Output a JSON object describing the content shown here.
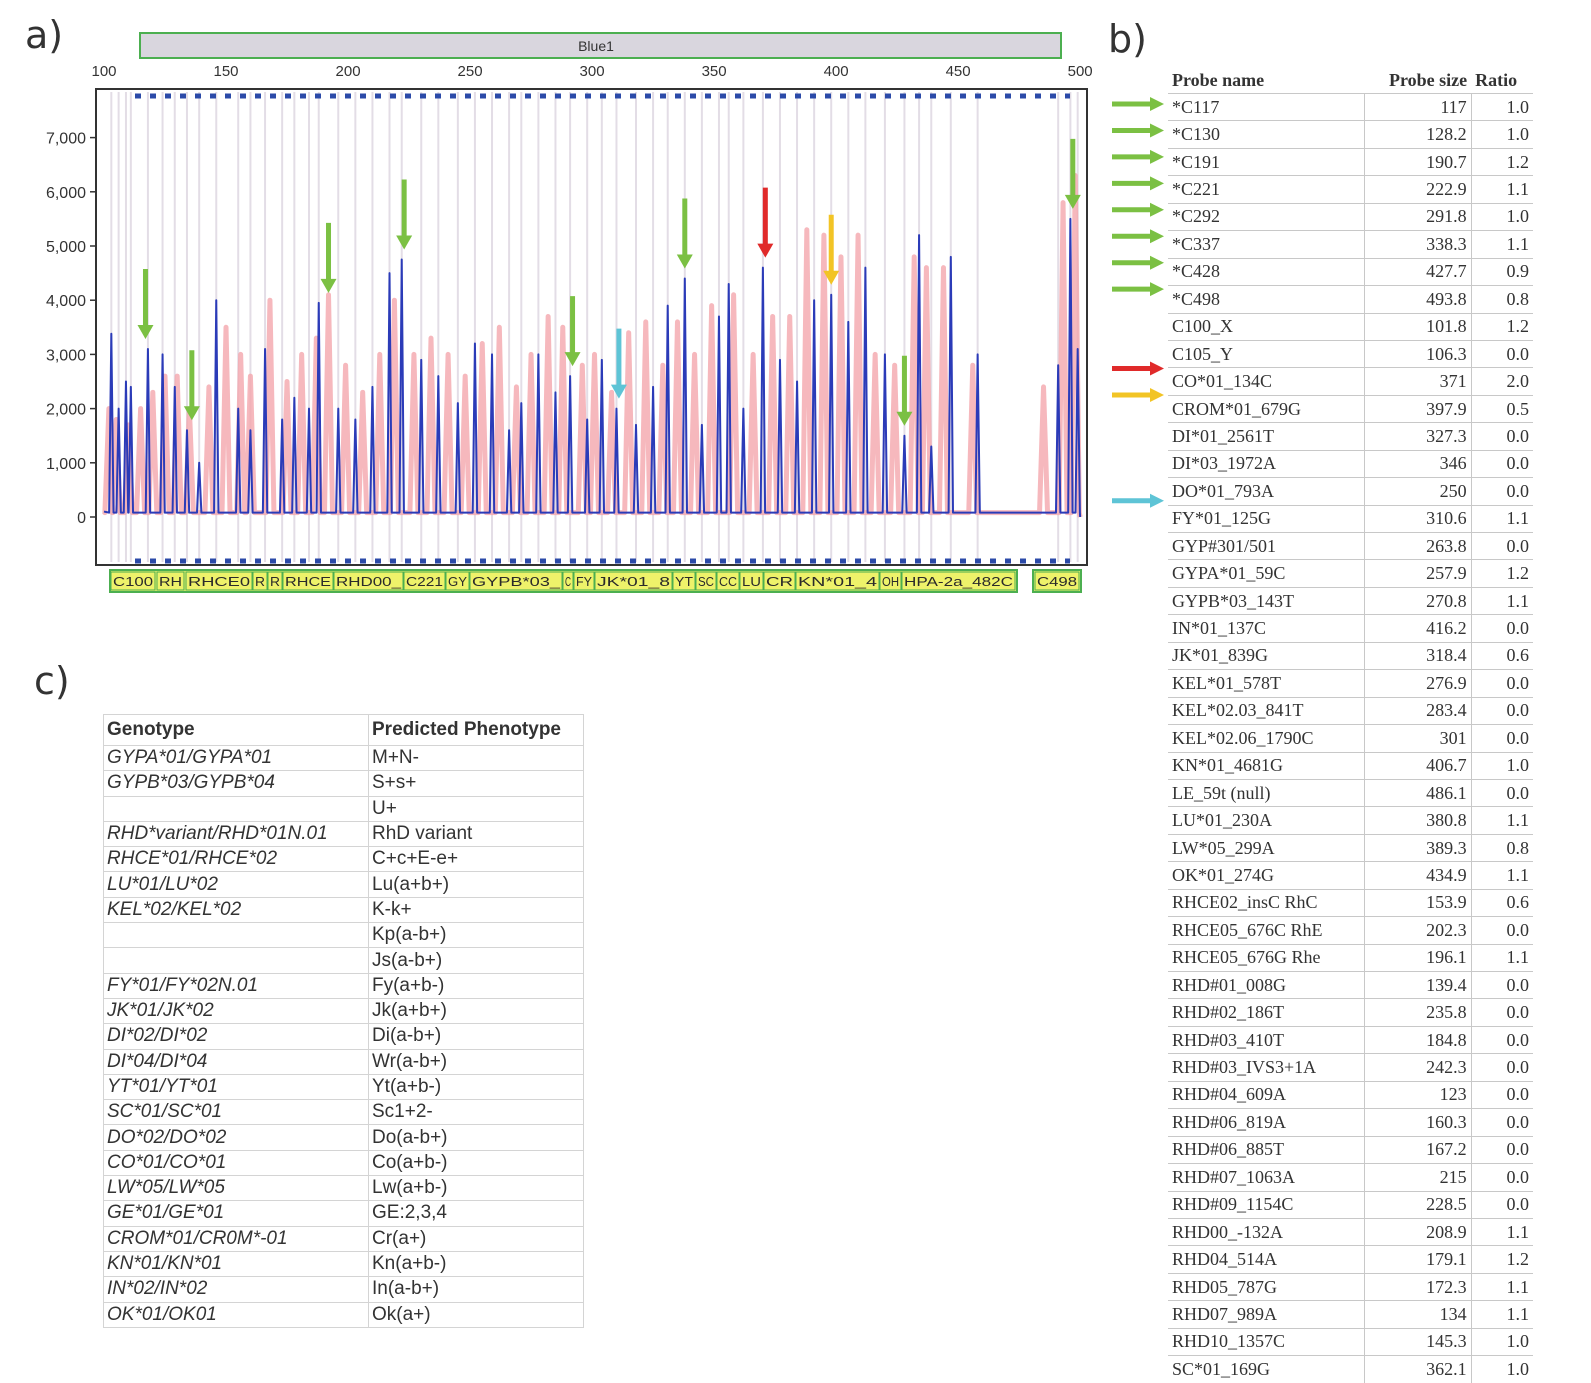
{
  "panels": {
    "a": "a)",
    "b": "b)",
    "c": "c)"
  },
  "chart_data": {
    "type": "line",
    "dye_label": "Blue1",
    "x_ticks": [
      100,
      150,
      200,
      250,
      300,
      350,
      400,
      450,
      500
    ],
    "xlim": [
      100,
      500
    ],
    "y_ticks": [
      "0",
      "1,000",
      "2,000",
      "3,000",
      "4,000",
      "5,000",
      "6,000",
      "7,000"
    ],
    "ylim": [
      0,
      8000
    ],
    "series": [
      {
        "color": "#2b3bb8",
        "peaks": [
          [
            103,
            3380
          ],
          [
            106,
            2000
          ],
          [
            109,
            2500
          ],
          [
            111,
            2400
          ],
          [
            118,
            3100
          ],
          [
            124,
            3000
          ],
          [
            129,
            2400
          ],
          [
            134,
            1600
          ],
          [
            139,
            1000
          ],
          [
            146,
            4000
          ],
          [
            155,
            2000
          ],
          [
            160,
            1600
          ],
          [
            166,
            3100
          ],
          [
            173,
            1800
          ],
          [
            178,
            2200
          ],
          [
            184,
            2000
          ],
          [
            188,
            3950
          ],
          [
            196,
            2000
          ],
          [
            203,
            1800
          ],
          [
            210,
            2400
          ],
          [
            217,
            4500
          ],
          [
            222,
            4750
          ],
          [
            230,
            2900
          ],
          [
            237,
            2600
          ],
          [
            245,
            2100
          ],
          [
            252,
            3200
          ],
          [
            259,
            3000
          ],
          [
            266,
            1600
          ],
          [
            271,
            2100
          ],
          [
            278,
            3000
          ],
          [
            285,
            2300
          ],
          [
            291,
            2600
          ],
          [
            298,
            1800
          ],
          [
            304,
            2900
          ],
          [
            310,
            2000
          ],
          [
            318,
            1700
          ],
          [
            325,
            2400
          ],
          [
            331,
            3900
          ],
          [
            338,
            4400
          ],
          [
            345,
            1700
          ],
          [
            352,
            3700
          ],
          [
            356,
            4300
          ],
          [
            362,
            2000
          ],
          [
            370,
            4600
          ],
          [
            377,
            2900
          ],
          [
            384,
            2500
          ],
          [
            391,
            4000
          ],
          [
            398,
            4100
          ],
          [
            405,
            3600
          ],
          [
            412,
            4600
          ],
          [
            420,
            3000
          ],
          [
            428,
            1500
          ],
          [
            434,
            5200
          ],
          [
            439,
            1300
          ],
          [
            447,
            4800
          ],
          [
            458,
            3000
          ],
          [
            491,
            2800
          ],
          [
            496,
            5500
          ],
          [
            499,
            3100
          ]
        ]
      },
      {
        "color": "#f4a6ad",
        "peaks": [
          [
            102,
            2000
          ],
          [
            105,
            1800
          ],
          [
            110,
            1700
          ],
          [
            115,
            2000
          ],
          [
            120,
            2300
          ],
          [
            125,
            2600
          ],
          [
            130,
            2600
          ],
          [
            135,
            2000
          ],
          [
            143,
            2400
          ],
          [
            150,
            3500
          ],
          [
            156,
            3000
          ],
          [
            160,
            2600
          ],
          [
            168,
            4000
          ],
          [
            175,
            2500
          ],
          [
            181,
            3000
          ],
          [
            187,
            3300
          ],
          [
            192,
            4100
          ],
          [
            199,
            2800
          ],
          [
            206,
            2300
          ],
          [
            213,
            3000
          ],
          [
            219,
            4000
          ],
          [
            227,
            3000
          ],
          [
            234,
            3300
          ],
          [
            241,
            3000
          ],
          [
            248,
            2600
          ],
          [
            255,
            3200
          ],
          [
            262,
            3500
          ],
          [
            269,
            2400
          ],
          [
            275,
            3000
          ],
          [
            282,
            3700
          ],
          [
            288,
            3500
          ],
          [
            296,
            2800
          ],
          [
            301,
            3000
          ],
          [
            308,
            2300
          ],
          [
            315,
            3400
          ],
          [
            322,
            3600
          ],
          [
            329,
            2800
          ],
          [
            335,
            3600
          ],
          [
            342,
            3000
          ],
          [
            349,
            3900
          ],
          [
            358,
            4100
          ],
          [
            366,
            3000
          ],
          [
            374,
            3700
          ],
          [
            381,
            3700
          ],
          [
            388,
            5300
          ],
          [
            395,
            5200
          ],
          [
            402,
            4800
          ],
          [
            409,
            5200
          ],
          [
            416,
            3000
          ],
          [
            424,
            2800
          ],
          [
            432,
            4800
          ],
          [
            437,
            4600
          ],
          [
            444,
            4600
          ],
          [
            456,
            2800
          ],
          [
            485,
            2400
          ],
          [
            493,
            5800
          ],
          [
            498,
            6300
          ]
        ]
      }
    ],
    "arrows": [
      {
        "x": 117,
        "color": "#7bc043"
      },
      {
        "x": 136,
        "color": "#7bc043"
      },
      {
        "x": 192,
        "color": "#7bc043"
      },
      {
        "x": 223,
        "color": "#7bc043"
      },
      {
        "x": 292,
        "color": "#7bc043"
      },
      {
        "x": 338,
        "color": "#7bc043"
      },
      {
        "x": 428,
        "color": "#7bc043"
      },
      {
        "x": 497,
        "color": "#7bc043"
      },
      {
        "x": 371,
        "color": "#e02a2a"
      },
      {
        "x": 398,
        "color": "#f2c425"
      },
      {
        "x": 311,
        "color": "#5ec4d6"
      }
    ],
    "bin_labels": [
      "C100",
      "RH",
      "RHCE0",
      "R",
      "R",
      "RHCE",
      "RHD00_",
      "C221",
      "GY",
      "GYPB*03_",
      "C",
      "FY",
      "JK*01_8",
      "YT",
      "SC",
      "CC",
      "LU",
      "CR",
      "KN*01_4",
      "OH",
      "HPA-2a_482C",
      "C498"
    ]
  },
  "probe_table": {
    "headers": [
      "Probe name",
      "Probe size",
      "Ratio"
    ],
    "rows": [
      {
        "name": "*C117",
        "size": "117",
        "ratio": "1.0",
        "arrow": "#7bc043"
      },
      {
        "name": "*C130",
        "size": "128.2",
        "ratio": "1.0",
        "arrow": "#7bc043"
      },
      {
        "name": "*C191",
        "size": "190.7",
        "ratio": "1.2",
        "arrow": "#7bc043"
      },
      {
        "name": "*C221",
        "size": "222.9",
        "ratio": "1.1",
        "arrow": "#7bc043"
      },
      {
        "name": "*C292",
        "size": "291.8",
        "ratio": "1.0",
        "arrow": "#7bc043"
      },
      {
        "name": "*C337",
        "size": "338.3",
        "ratio": "1.1",
        "arrow": "#7bc043"
      },
      {
        "name": "*C428",
        "size": "427.7",
        "ratio": "0.9",
        "arrow": "#7bc043"
      },
      {
        "name": "*C498",
        "size": "493.8",
        "ratio": "0.8",
        "arrow": "#7bc043"
      },
      {
        "name": "C100_X",
        "size": "101.8",
        "ratio": "1.2",
        "arrow": ""
      },
      {
        "name": "C105_Y",
        "size": "106.3",
        "ratio": "0.0",
        "arrow": ""
      },
      {
        "name": "CO*01_134C",
        "size": "371",
        "ratio": "2.0",
        "arrow": "#e02a2a"
      },
      {
        "name": "CROM*01_679G",
        "size": "397.9",
        "ratio": "0.5",
        "arrow": "#f2c425"
      },
      {
        "name": "DI*01_2561T",
        "size": "327.3",
        "ratio": "0.0",
        "arrow": ""
      },
      {
        "name": "DI*03_1972A",
        "size": "346",
        "ratio": "0.0",
        "arrow": ""
      },
      {
        "name": "DO*01_793A",
        "size": "250",
        "ratio": "0.0",
        "arrow": ""
      },
      {
        "name": "FY*01_125G",
        "size": "310.6",
        "ratio": "1.1",
        "arrow": "#5ec4d6"
      },
      {
        "name": "GYP#301/501",
        "size": "263.8",
        "ratio": "0.0",
        "arrow": ""
      },
      {
        "name": "GYPA*01_59C",
        "size": "257.9",
        "ratio": "1.2",
        "arrow": ""
      },
      {
        "name": "GYPB*03_143T",
        "size": "270.8",
        "ratio": "1.1",
        "arrow": ""
      },
      {
        "name": "IN*01_137C",
        "size": "416.2",
        "ratio": "0.0",
        "arrow": ""
      },
      {
        "name": "JK*01_839G",
        "size": "318.4",
        "ratio": "0.6",
        "arrow": ""
      },
      {
        "name": "KEL*01_578T",
        "size": "276.9",
        "ratio": "0.0",
        "arrow": ""
      },
      {
        "name": "KEL*02.03_841T",
        "size": "283.4",
        "ratio": "0.0",
        "arrow": ""
      },
      {
        "name": "KEL*02.06_1790C",
        "size": "301",
        "ratio": "0.0",
        "arrow": ""
      },
      {
        "name": "KN*01_4681G",
        "size": "406.7",
        "ratio": "1.0",
        "arrow": ""
      },
      {
        "name": "LE_59t (null)",
        "size": "486.1",
        "ratio": "0.0",
        "arrow": ""
      },
      {
        "name": "LU*01_230A",
        "size": "380.8",
        "ratio": "1.1",
        "arrow": ""
      },
      {
        "name": "LW*05_299A",
        "size": "389.3",
        "ratio": "0.8",
        "arrow": ""
      },
      {
        "name": "OK*01_274G",
        "size": "434.9",
        "ratio": "1.1",
        "arrow": ""
      },
      {
        "name": "RHCE02_insC RhC",
        "size": "153.9",
        "ratio": "0.6",
        "arrow": ""
      },
      {
        "name": "RHCE05_676C RhE",
        "size": "202.3",
        "ratio": "0.0",
        "arrow": ""
      },
      {
        "name": "RHCE05_676G Rhe",
        "size": "196.1",
        "ratio": "1.1",
        "arrow": ""
      },
      {
        "name": "RHD#01_008G",
        "size": "139.4",
        "ratio": "0.0",
        "arrow": ""
      },
      {
        "name": "RHD#02_186T",
        "size": "235.8",
        "ratio": "0.0",
        "arrow": ""
      },
      {
        "name": "RHD#03_410T",
        "size": "184.8",
        "ratio": "0.0",
        "arrow": ""
      },
      {
        "name": "RHD#03_IVS3+1A",
        "size": "242.3",
        "ratio": "0.0",
        "arrow": ""
      },
      {
        "name": "RHD#04_609A",
        "size": "123",
        "ratio": "0.0",
        "arrow": ""
      },
      {
        "name": "RHD#06_819A",
        "size": "160.3",
        "ratio": "0.0",
        "arrow": ""
      },
      {
        "name": "RHD#06_885T",
        "size": "167.2",
        "ratio": "0.0",
        "arrow": ""
      },
      {
        "name": "RHD#07_1063A",
        "size": "215",
        "ratio": "0.0",
        "arrow": ""
      },
      {
        "name": "RHD#09_1154C",
        "size": "228.5",
        "ratio": "0.0",
        "arrow": ""
      },
      {
        "name": "RHD00_-132A",
        "size": "208.9",
        "ratio": "1.1",
        "arrow": ""
      },
      {
        "name": "RHD04_514A",
        "size": "179.1",
        "ratio": "1.2",
        "arrow": ""
      },
      {
        "name": "RHD05_787G",
        "size": "172.3",
        "ratio": "1.1",
        "arrow": ""
      },
      {
        "name": "RHD07_989A",
        "size": "134",
        "ratio": "1.1",
        "arrow": ""
      },
      {
        "name": "RHD10_1357C",
        "size": "145.3",
        "ratio": "1.0",
        "arrow": ""
      },
      {
        "name": "SC*01_169G",
        "size": "362.1",
        "ratio": "1.0",
        "arrow": ""
      }
    ]
  },
  "genotype_table": {
    "headers": [
      "Genotype",
      "Predicted Phenotype"
    ],
    "rows": [
      [
        "GYPA*01/GYPA*01",
        "M+N-"
      ],
      [
        "GYPB*03/GYPB*04",
        "S+s+"
      ],
      [
        "",
        "U+"
      ],
      [
        "RHD*variant/RHD*01N.01",
        "RhD variant"
      ],
      [
        "RHCE*01/RHCE*02",
        "C+c+E-e+"
      ],
      [
        "LU*01/LU*02",
        "Lu(a+b+)"
      ],
      [
        "KEL*02/KEL*02",
        "K-k+"
      ],
      [
        "",
        "Kp(a-b+)"
      ],
      [
        "",
        "Js(a-b+)"
      ],
      [
        "FY*01/FY*02N.01",
        "Fy(a+b-)"
      ],
      [
        "JK*01/JK*02",
        "Jk(a+b+)"
      ],
      [
        "DI*02/DI*02",
        "Di(a-b+)"
      ],
      [
        "DI*04/DI*04",
        "Wr(a-b+)"
      ],
      [
        "YT*01/YT*01",
        "Yt(a+b-)"
      ],
      [
        "SC*01/SC*01",
        "Sc1+2-"
      ],
      [
        "DO*02/DO*02",
        "Do(a-b+)"
      ],
      [
        "CO*01/CO*01",
        "Co(a+b-)"
      ],
      [
        "LW*05/LW*05",
        "Lw(a+b-)"
      ],
      [
        "GE*01/GE*01",
        "GE:2,3,4"
      ],
      [
        "CROM*01/CR0M*-01",
        "Cr(a+)"
      ],
      [
        "KN*01/KN*01",
        "Kn(a+b-)"
      ],
      [
        "IN*02/IN*02",
        "In(a-b+)"
      ],
      [
        "OK*01/OK01",
        "Ok(a+)"
      ]
    ]
  }
}
